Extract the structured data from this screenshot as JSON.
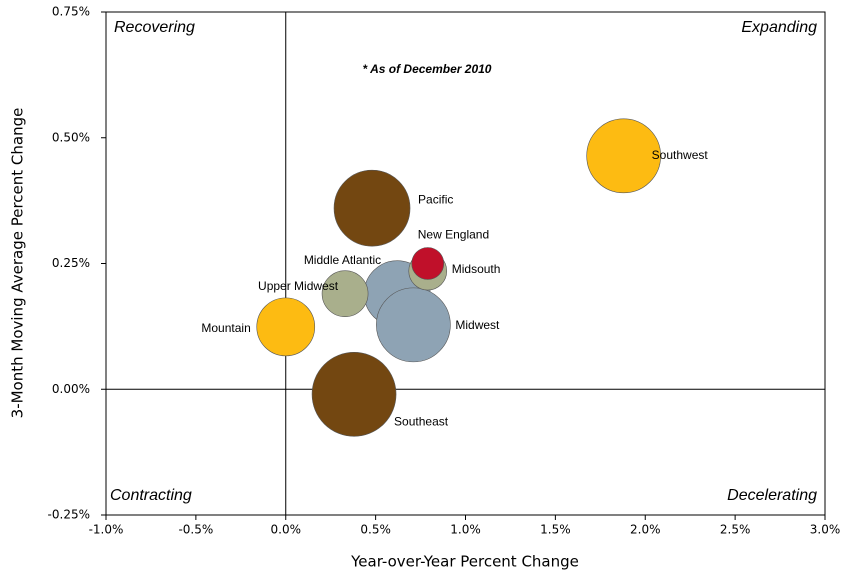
{
  "chart_data": {
    "type": "bubble",
    "xlabel": "Year-over-Year Percent Change",
    "ylabel": "3-Month Moving Average Percent Change",
    "annotations": [
      "* As of December 2010"
    ],
    "quadrants": [
      "Recovering",
      "Expanding",
      "Contracting",
      "Decelerating"
    ],
    "xlim": [
      -1.0,
      3.0
    ],
    "xticks": [
      {
        "value": -1.0,
        "label": "-1.0%"
      },
      {
        "value": -0.5,
        "label": "-0.5%"
      },
      {
        "value": 0.0,
        "label": "0.0%"
      },
      {
        "value": 0.5,
        "label": "0.5%"
      },
      {
        "value": 1.0,
        "label": "1.0%"
      },
      {
        "value": 1.5,
        "label": "1.5%"
      },
      {
        "value": 2.0,
        "label": "2.0%"
      },
      {
        "value": 2.5,
        "label": "2.5%"
      },
      {
        "value": 3.0,
        "label": "3.0%"
      }
    ],
    "ylim": [
      -0.25,
      0.75
    ],
    "yticks": [
      {
        "value": -0.25,
        "label": "-0.25%"
      },
      {
        "value": 0.0,
        "label": "0.00%"
      },
      {
        "value": 0.25,
        "label": "0.25%"
      },
      {
        "value": 0.5,
        "label": "0.50%"
      },
      {
        "value": 0.75,
        "label": "0.75%"
      }
    ],
    "grid": false,
    "points": {
      "names": [
        "Pacific",
        "Southwest",
        "Middle Atlantic",
        "Midwest",
        "Upper Midwest",
        "Mountain",
        "Southeast",
        "Midsouth",
        "New England"
      ],
      "x": [
        0.48,
        1.88,
        0.62,
        0.71,
        0.33,
        0.0,
        0.38,
        0.79,
        0.79
      ],
      "y": [
        0.36,
        0.464,
        0.19,
        0.128,
        0.19,
        0.124,
        -0.01,
        0.235,
        0.25
      ],
      "sizes": [
        38,
        37,
        33,
        37,
        23,
        29,
        42,
        19,
        16
      ],
      "colors": [
        "#734711",
        "#FDBB12",
        "#8EA3B4",
        "#8EA3B4",
        "#A9AF8C",
        "#FDBB12",
        "#734711",
        "#A9AF8C",
        "#C0102A"
      ]
    }
  }
}
